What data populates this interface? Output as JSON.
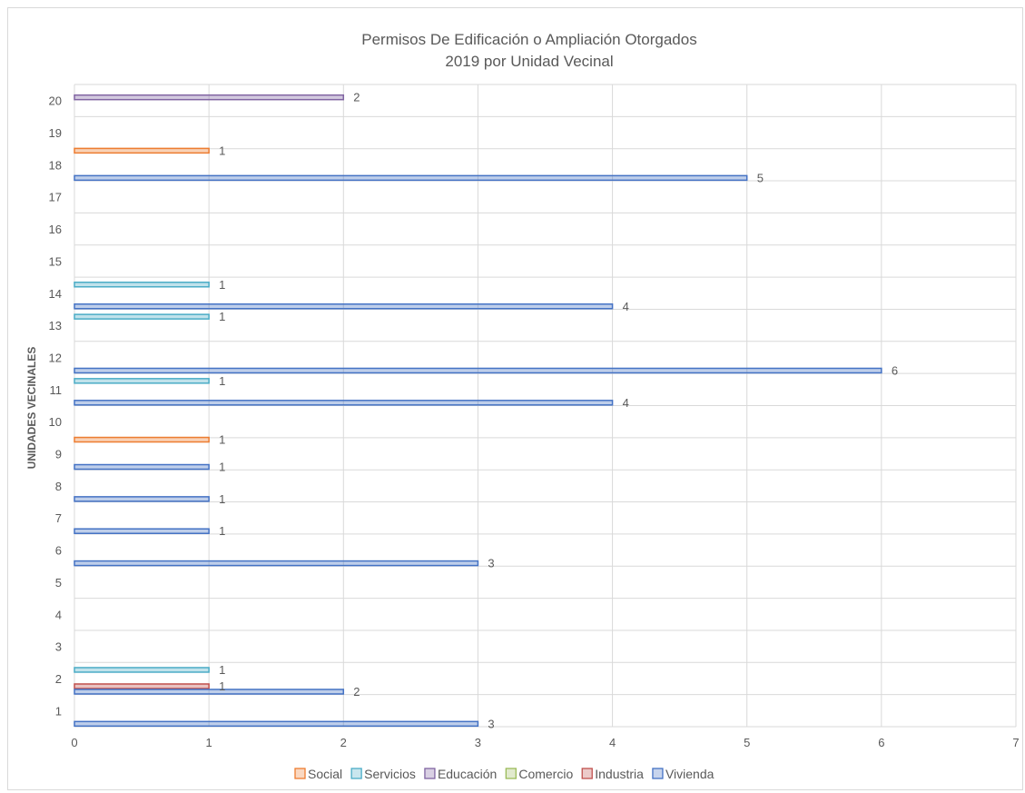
{
  "chart_data": {
    "type": "bar",
    "orientation": "horizontal",
    "title_lines": [
      "Permisos De Edificación o Ampliación Otorgados",
      "2019 por Unidad Vecinal"
    ],
    "xlabel": "",
    "ylabel": "UNIDADES VECINALES",
    "xlim": [
      0,
      7
    ],
    "x_ticks": [
      0,
      1,
      2,
      3,
      4,
      5,
      6,
      7
    ],
    "categories": [
      "1",
      "2",
      "3",
      "4",
      "5",
      "6",
      "7",
      "8",
      "9",
      "10",
      "11",
      "12",
      "13",
      "14",
      "15",
      "16",
      "17",
      "18",
      "19",
      "20"
    ],
    "grid": true,
    "legend_position": "bottom",
    "series": [
      {
        "name": "Social",
        "color": "#ed7d31",
        "values": [
          0,
          0,
          0,
          0,
          0,
          0,
          0,
          0,
          1,
          0,
          0,
          0,
          0,
          0,
          0,
          0,
          0,
          1,
          0,
          0
        ]
      },
      {
        "name": "Servicios",
        "color": "#4bacc6",
        "values": [
          0,
          1,
          0,
          0,
          0,
          0,
          0,
          0,
          0,
          0,
          1,
          0,
          1,
          1,
          0,
          0,
          0,
          0,
          0,
          0
        ]
      },
      {
        "name": "Educación",
        "color": "#8064a2",
        "values": [
          0,
          0,
          0,
          0,
          0,
          0,
          0,
          0,
          0,
          0,
          0,
          0,
          0,
          0,
          0,
          0,
          0,
          0,
          0,
          2
        ]
      },
      {
        "name": "Comercio",
        "color": "#9bbb59",
        "values": [
          0,
          0,
          0,
          0,
          0,
          0,
          0,
          0,
          0,
          0,
          0,
          0,
          0,
          0,
          0,
          0,
          0,
          0,
          0,
          0
        ]
      },
      {
        "name": "Industria",
        "color": "#c0504d",
        "values": [
          0,
          1,
          0,
          0,
          0,
          0,
          0,
          0,
          0,
          0,
          0,
          0,
          0,
          0,
          0,
          0,
          0,
          0,
          0,
          0
        ]
      },
      {
        "name": "Vivienda",
        "color": "#4472c4",
        "values": [
          3,
          2,
          0,
          0,
          0,
          3,
          1,
          1,
          1,
          0,
          4,
          6,
          0,
          4,
          0,
          0,
          0,
          5,
          0,
          0
        ]
      }
    ]
  }
}
